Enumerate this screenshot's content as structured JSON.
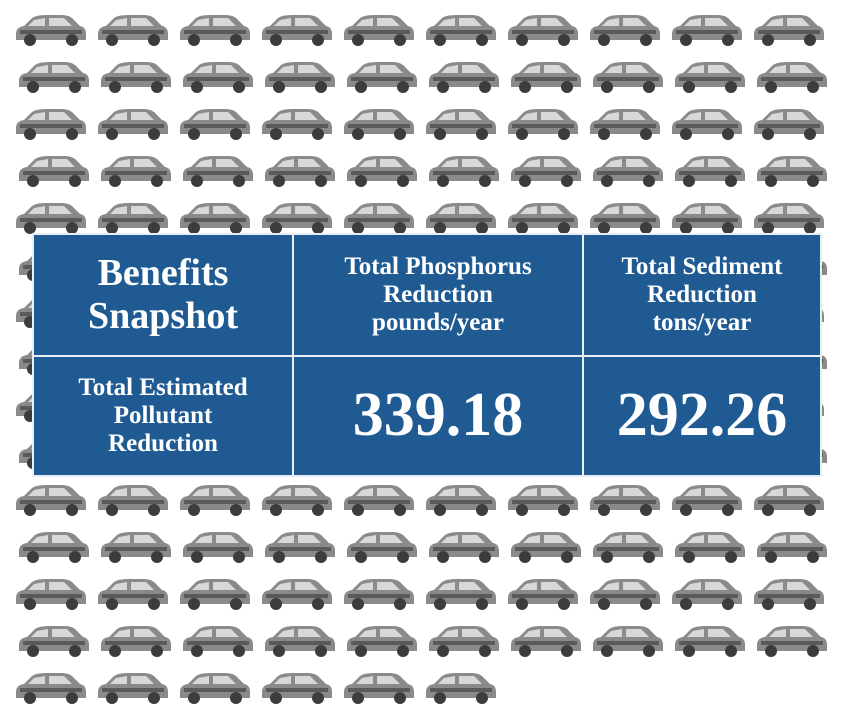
{
  "table": {
    "header": [
      [
        "Benefits",
        "Snapshot"
      ],
      [
        "Total Phosphorus",
        "Reduction",
        "pounds/year"
      ],
      [
        "Total Sediment",
        "Reduction",
        "tons/year"
      ]
    ],
    "rows": [
      [
        [
          "Total Estimated",
          "Pollutant",
          "Reduction"
        ],
        "339.18",
        "292.26"
      ]
    ]
  }
}
